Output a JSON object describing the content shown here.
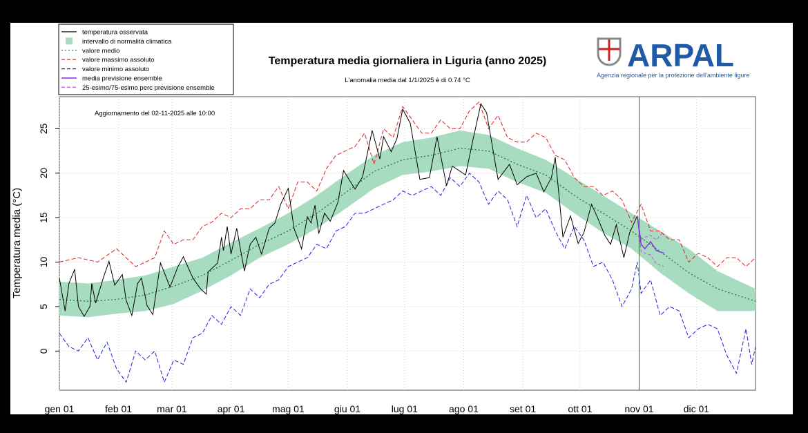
{
  "logo": {
    "name": "ARPAL",
    "tagline": "Agenzia regionale per la protezione dell'ambiente ligure",
    "brand_color": "#1f5aa6"
  },
  "chart_data": {
    "type": "line",
    "title": "Temperatura media giornaliera in Liguria (anno 2025)",
    "subtitle": "L'anomalia media dal 1/1/2025 è di 0.74 °C",
    "annotation": "Aggiornamento del 02-11-2025 alle 10:00",
    "xlabel": "",
    "ylabel": "Temperatura media (°C)",
    "x_unit": "day of year 2025",
    "xlim": [
      0,
      365
    ],
    "ylim": [
      -4.4,
      28.6
    ],
    "grid": true,
    "legend_placement": "top-left (outside plot)",
    "x_ticks": [
      {
        "day": 0,
        "label": "gen 01"
      },
      {
        "day": 31,
        "label": "feb 01"
      },
      {
        "day": 59,
        "label": "mar 01"
      },
      {
        "day": 90,
        "label": "apr 01"
      },
      {
        "day": 120,
        "label": "mag 01"
      },
      {
        "day": 151,
        "label": "giu 01"
      },
      {
        "day": 181,
        "label": "lug 01"
      },
      {
        "day": 212,
        "label": "ago 01"
      },
      {
        "day": 243,
        "label": "set 01"
      },
      {
        "day": 273,
        "label": "ott 01"
      },
      {
        "day": 304,
        "label": "nov 01"
      },
      {
        "day": 334,
        "label": "dic 01"
      }
    ],
    "y_ticks": [
      0,
      5,
      10,
      15,
      20,
      25
    ],
    "current_day_marker": 304,
    "colors": {
      "observed": "#000000",
      "band": "#a8dcc0",
      "mean": "#1a7a1a",
      "max": "#e02020",
      "min": "#2020e0",
      "ensemble_mean": "#8a2be2",
      "ensemble_pct": "#c050e0",
      "marker": "#2e8b2e"
    },
    "legend": [
      {
        "key": "observed",
        "label": "temperatura osservata",
        "style": "solid"
      },
      {
        "key": "band",
        "label": "intervallo di normalità climatica",
        "style": "box"
      },
      {
        "key": "mean",
        "label": "valore medio",
        "style": "dotted"
      },
      {
        "key": "max",
        "label": "valore massimo assoluto",
        "style": "dashed"
      },
      {
        "key": "min",
        "label": "valore minimo assoluto",
        "style": "dashed"
      },
      {
        "key": "ensemble_mean",
        "label": "media previsione ensemble",
        "style": "solid"
      },
      {
        "key": "ensemble_pct",
        "label": "25-esimo/75-esimo perc previsione ensemble",
        "style": "dashed"
      }
    ],
    "climate": {
      "x": [
        0,
        15,
        30,
        45,
        60,
        75,
        90,
        105,
        120,
        135,
        150,
        165,
        180,
        195,
        210,
        225,
        240,
        255,
        270,
        285,
        300,
        315,
        330,
        345,
        365
      ],
      "mean": [
        5.8,
        5.6,
        5.8,
        6.3,
        7.3,
        8.5,
        10.2,
        12.0,
        13.5,
        15.5,
        17.8,
        20.2,
        21.5,
        22.0,
        22.8,
        22.5,
        21.0,
        19.8,
        17.5,
        15.5,
        13.5,
        11.2,
        8.8,
        7.0,
        5.6
      ],
      "lower": [
        4.0,
        3.8,
        4.2,
        4.5,
        5.3,
        6.8,
        8.5,
        10.5,
        12.0,
        13.8,
        16.0,
        18.3,
        19.8,
        20.2,
        20.8,
        20.5,
        19.0,
        17.8,
        15.5,
        13.3,
        11.5,
        8.8,
        6.5,
        4.5,
        4.5
      ],
      "upper": [
        7.8,
        7.6,
        8.0,
        8.5,
        9.5,
        10.5,
        12.2,
        13.8,
        15.5,
        17.5,
        19.8,
        22.0,
        23.5,
        24.0,
        24.8,
        24.3,
        22.8,
        21.5,
        19.5,
        17.5,
        15.5,
        13.5,
        11.5,
        9.0,
        7.0
      ]
    },
    "observed": {
      "x": [
        0,
        3,
        5,
        8,
        10,
        13,
        16,
        17,
        19,
        23,
        26,
        29,
        33,
        35,
        38,
        41,
        43,
        46,
        49,
        53,
        58,
        62,
        65,
        70,
        74,
        77,
        78,
        83,
        85,
        86,
        88,
        90,
        93,
        97,
        100,
        103,
        106,
        110,
        113,
        116,
        120,
        123,
        127,
        130,
        132,
        134,
        136,
        139,
        142,
        146,
        149,
        153,
        155,
        159,
        161,
        164,
        168,
        170,
        174,
        177,
        180,
        184,
        189,
        194,
        198,
        203,
        206,
        213,
        217,
        221,
        224,
        230,
        236,
        240,
        245,
        250,
        254,
        258,
        260,
        262,
        264,
        268,
        272,
        275,
        279,
        282,
        286,
        289,
        292,
        296,
        299,
        303
      ],
      "y": [
        8.2,
        4.5,
        7.6,
        9.2,
        5.0,
        3.9,
        5.0,
        7.6,
        5.4,
        8.2,
        10.1,
        7.4,
        8.6,
        5.7,
        4.0,
        7.6,
        8.2,
        5.1,
        4.1,
        9.9,
        7.2,
        9.4,
        10.6,
        8.2,
        7.0,
        6.4,
        8.9,
        9.9,
        12.8,
        11.3,
        14.0,
        10.9,
        13.8,
        9.0,
        12.0,
        12.8,
        10.9,
        13.8,
        14.4,
        16.5,
        18.3,
        13.8,
        11.5,
        15.1,
        14.4,
        16.4,
        13.2,
        15.5,
        14.6,
        16.7,
        20.3,
        18.9,
        18.2,
        19.6,
        21.7,
        24.8,
        21.6,
        24.1,
        22.4,
        23.9,
        27.2,
        25.6,
        19.3,
        19.5,
        24.1,
        18.6,
        20.8,
        19.8,
        23.9,
        27.8,
        26.8,
        19.3,
        21.0,
        18.7,
        19.6,
        20.0,
        17.9,
        19.5,
        21.8,
        17.4,
        12.8,
        15.2,
        12.1,
        13.3,
        16.5,
        15.1,
        13.0,
        12.0,
        14.2,
        10.5,
        13.3,
        15.2
      ]
    },
    "max_abs": {
      "x": [
        0,
        10,
        20,
        30,
        40,
        50,
        55,
        60,
        65,
        70,
        75,
        80,
        85,
        90,
        95,
        100,
        105,
        110,
        115,
        120,
        125,
        130,
        135,
        140,
        145,
        150,
        155,
        160,
        165,
        170,
        175,
        180,
        185,
        190,
        195,
        200,
        205,
        210,
        215,
        220,
        225,
        230,
        235,
        240,
        245,
        250,
        255,
        260,
        265,
        270,
        275,
        280,
        285,
        290,
        295,
        300,
        305,
        310,
        315,
        320,
        325,
        330,
        335,
        340,
        345,
        350,
        355,
        360,
        365
      ],
      "y": [
        10,
        10.5,
        10,
        11.5,
        9.5,
        10.5,
        13.5,
        12,
        12.5,
        12.5,
        14,
        14.5,
        15.5,
        15,
        16,
        16,
        17,
        17,
        18.5,
        16,
        19,
        19,
        18,
        20.5,
        22,
        22.5,
        23,
        24.5,
        21,
        25,
        24,
        27.5,
        26,
        24.5,
        24.5,
        26,
        25,
        25,
        27,
        28,
        25,
        26.5,
        24,
        23.5,
        23.5,
        24.5,
        24,
        22,
        21.5,
        19.5,
        18.5,
        18.5,
        17.5,
        18,
        17,
        14.5,
        16.5,
        13.5,
        13.5,
        12.5,
        12.5,
        10,
        11,
        10.5,
        9.5,
        10.5,
        10.5,
        9.5,
        10.5
      ]
    },
    "min_abs": {
      "x": [
        0,
        5,
        10,
        15,
        20,
        25,
        30,
        35,
        40,
        45,
        50,
        55,
        60,
        65,
        70,
        75,
        80,
        85,
        90,
        95,
        100,
        105,
        110,
        115,
        120,
        125,
        130,
        135,
        140,
        145,
        150,
        155,
        160,
        165,
        170,
        175,
        180,
        185,
        190,
        195,
        200,
        205,
        210,
        215,
        220,
        225,
        230,
        235,
        240,
        245,
        250,
        255,
        260,
        265,
        270,
        275,
        280,
        285,
        290,
        295,
        300,
        303,
        305,
        310,
        315,
        320,
        325,
        330,
        335,
        340,
        345,
        350,
        355,
        360,
        363,
        365
      ],
      "y": [
        2,
        0.5,
        0,
        1.5,
        -1,
        1,
        -2,
        -3.5,
        0,
        -1,
        0,
        -3.5,
        -1,
        -1.5,
        1.5,
        2,
        4,
        3,
        5,
        4,
        7,
        6,
        7.5,
        8,
        9.5,
        10,
        10.5,
        12,
        11.5,
        13.5,
        14,
        15.5,
        15.5,
        16,
        16.5,
        17,
        18,
        17.5,
        18,
        18.5,
        17.5,
        19.5,
        18.5,
        20,
        19,
        16.5,
        18,
        17,
        14,
        17.5,
        15,
        16,
        13.5,
        11.5,
        14,
        12.5,
        9.5,
        10,
        8,
        5,
        7,
        10,
        6.5,
        8,
        4,
        5,
        4.5,
        1.5,
        2.5,
        3,
        2.5,
        -0.5,
        -2.5,
        2.5,
        -1.5,
        0.5
      ]
    },
    "ensemble": {
      "x": [
        303,
        305,
        307,
        310,
        313,
        317
      ],
      "mean": [
        15.2,
        12.0,
        11.5,
        12.3,
        11.3,
        11.0
      ],
      "p25": [
        15.2,
        11.2,
        11.0,
        10.8,
        9.8,
        9.5
      ],
      "p75": [
        15.2,
        12.5,
        12.8,
        13.0,
        12.5,
        13.5
      ]
    }
  }
}
